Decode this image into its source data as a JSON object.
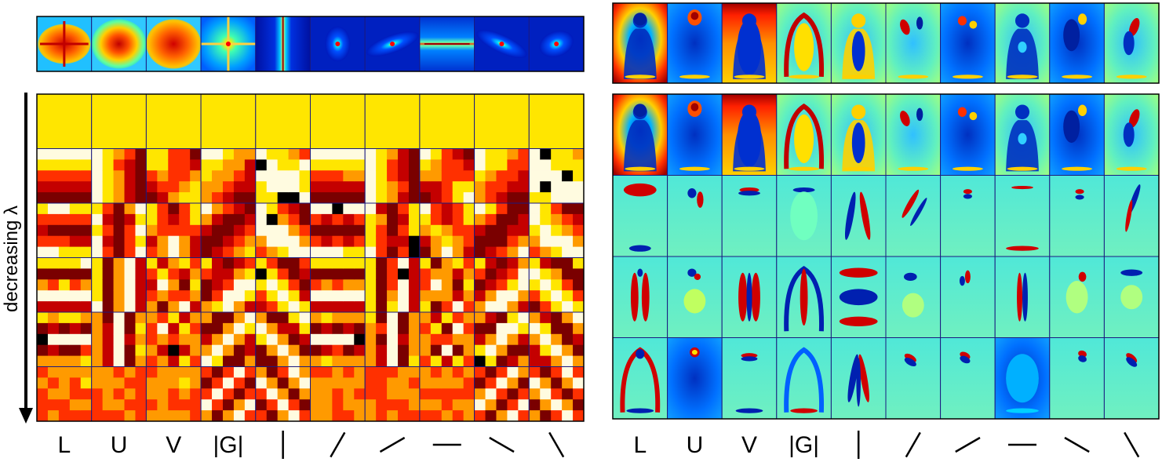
{
  "left_panel": {
    "axis_label": "decreasing λ",
    "kernel_row_count": 1,
    "basis_row_count": 6
  },
  "right_panel": {
    "mean_row_count": 1,
    "component_row_count": 5
  },
  "column_labels": [
    "L",
    "U",
    "V",
    "|G|",
    "",
    "",
    "",
    "",
    "",
    ""
  ],
  "orientation_columns": [
    {
      "column": 5,
      "glyph": "vertical-bar-icon"
    },
    {
      "column": 6,
      "glyph": "diagonal-60-icon"
    },
    {
      "column": 7,
      "glyph": "diagonal-30-icon"
    },
    {
      "column": 8,
      "glyph": "horizontal-bar-icon"
    },
    {
      "column": 9,
      "glyph": "diagonal-minus-30-icon"
    },
    {
      "column": 10,
      "glyph": "diagonal-minus-60-icon"
    }
  ],
  "colors": {
    "hot_map": [
      "#000000",
      "#7a0000",
      "#c40000",
      "#ff3000",
      "#ff9a00",
      "#ffe600",
      "#fffbe0"
    ],
    "jet_map": [
      "#00008f",
      "#0040ff",
      "#00c0ff",
      "#70ffa0",
      "#ffff00",
      "#ff8000",
      "#d00000",
      "#800000"
    ],
    "border": "#1a1a80"
  }
}
